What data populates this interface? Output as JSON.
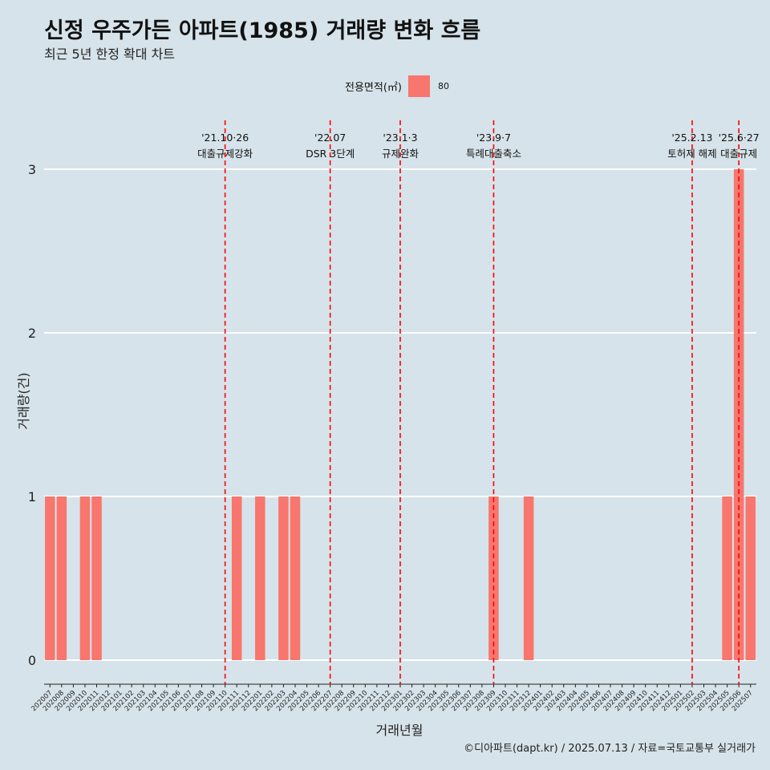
{
  "chart_data": {
    "type": "bar",
    "title": "신정 우주가든 아파트(1985) 거래량 변화 흐름",
    "subtitle": "최근 5년 한정 확대 차트",
    "xlabel": "거래년월",
    "ylabel": "거래량(건)",
    "legend": {
      "title": "전용면적(㎡)",
      "entries": [
        "80"
      ],
      "placement": "top"
    },
    "caption": "©디아파트(dapt.kr) / 2025.07.13 / 자료=국토교통부 실거래가",
    "ylim": [
      0,
      3
    ],
    "yticks": [
      0,
      1,
      2,
      3
    ],
    "grid": true,
    "bar_color": "#f8766d",
    "event_line_color": "#ff0000",
    "categories": [
      "202007",
      "202008",
      "202009",
      "202010",
      "202011",
      "202012",
      "202101",
      "202102",
      "202103",
      "202104",
      "202105",
      "202106",
      "202107",
      "202108",
      "202109",
      "202110",
      "202111",
      "202112",
      "202201",
      "202202",
      "202203",
      "202204",
      "202205",
      "202206",
      "202207",
      "202208",
      "202209",
      "202210",
      "202211",
      "202212",
      "202301",
      "202302",
      "202303",
      "202304",
      "202305",
      "202306",
      "202307",
      "202308",
      "202309",
      "202310",
      "202311",
      "202312",
      "202401",
      "202402",
      "202403",
      "202404",
      "202405",
      "202406",
      "202407",
      "202408",
      "202409",
      "202410",
      "202411",
      "202412",
      "202501",
      "202502",
      "202503",
      "202504",
      "202505",
      "202506",
      "202507"
    ],
    "series": [
      {
        "name": "80",
        "values": [
          1,
          1,
          0,
          1,
          1,
          0,
          0,
          0,
          0,
          0,
          0,
          0,
          0,
          0,
          0,
          0,
          1,
          0,
          1,
          0,
          1,
          1,
          0,
          0,
          0,
          0,
          0,
          0,
          0,
          0,
          0,
          0,
          0,
          0,
          0,
          0,
          0,
          0,
          1,
          0,
          0,
          1,
          0,
          0,
          0,
          0,
          0,
          0,
          0,
          0,
          0,
          0,
          0,
          0,
          0,
          0,
          0,
          0,
          1,
          3,
          1
        ]
      }
    ],
    "events": [
      {
        "category": "202110",
        "date": "'21.10·26",
        "label": "대출규제강화"
      },
      {
        "category": "202207",
        "date": "'22.07",
        "label": "DSR 3단계"
      },
      {
        "category": "202301",
        "date": "'23.1·3",
        "label": "규제완화"
      },
      {
        "category": "202309",
        "date": "'23.9·7",
        "label": "특례대출축소"
      },
      {
        "category": "202502",
        "date": "'25.2.13",
        "label": "토허제 해제"
      },
      {
        "category": "202506",
        "date": "'25.6·27",
        "label": "대출규제"
      }
    ]
  }
}
